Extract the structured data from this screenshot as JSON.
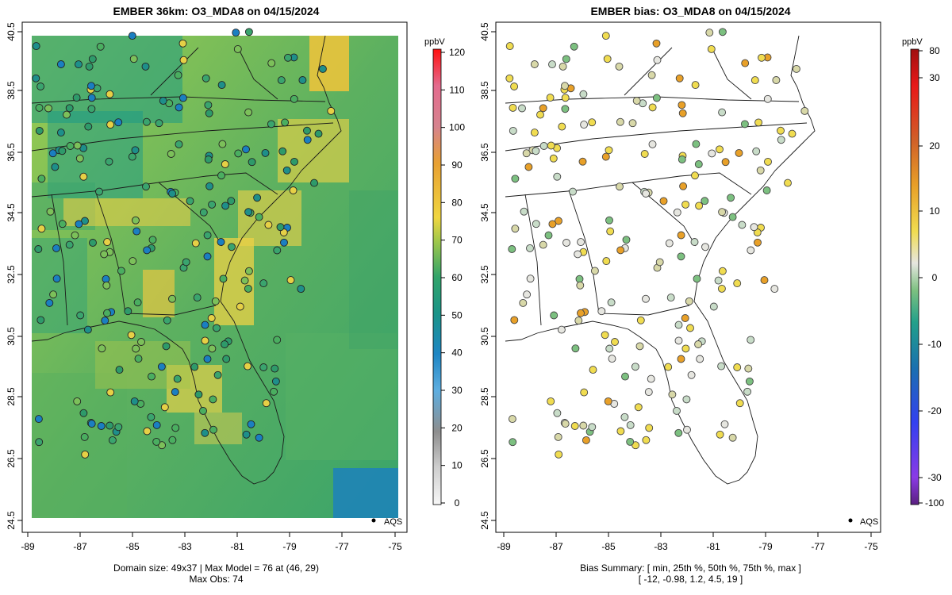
{
  "left_panel": {
    "title": "EMBER 36km: O3_MDA8 on 04/15/2024",
    "legend_unit": "ppbV",
    "legend_ticks": [
      "0",
      "10",
      "20",
      "30",
      "40",
      "50",
      "60",
      "70",
      "80",
      "90",
      "100",
      "110",
      "120"
    ],
    "marker_legend": "AQS",
    "caption_line1": "Domain size: 49x37 | Max Model = 76 at (46, 29)",
    "caption_line2": "Max Obs: 74"
  },
  "right_panel": {
    "title": "EMBER bias: O3_MDA8 on 04/15/2024",
    "legend_unit": "ppbV",
    "legend_ticks": [
      "80",
      "30",
      "20",
      "10",
      "0",
      "-10",
      "-20",
      "-30",
      "-100"
    ],
    "marker_legend": "AQS",
    "caption_line1": "Bias Summary: [ min, 25th %, 50th %, 75th %, max ]",
    "caption_line2": "[ -12,   -0.98,   1.2,   4.5,   19 ]"
  },
  "map_axes": {
    "x_ticks": [
      "-89",
      "-87",
      "-85",
      "-83",
      "-81",
      "-79",
      "-77",
      "-75"
    ],
    "y_ticks": [
      "24.5",
      "26.5",
      "28.5",
      "30.5",
      "32.5",
      "34.5",
      "36.5",
      "38.5",
      "40.5"
    ]
  },
  "colors": {
    "ozone_scale": [
      "#f2f2f2",
      "#bdbdbd",
      "#8c8c8c",
      "#5aa8dc",
      "#1a7fc1",
      "#1b8f8c",
      "#32a06a",
      "#66b85a",
      "#a8c84a",
      "#f0d040",
      "#e8a030",
      "#d85a7a",
      "#e8283a",
      "#ff0000"
    ],
    "bias_scale": [
      "#5a2080",
      "#8a2be2",
      "#2233ee",
      "#1a6ab0",
      "#2a9a8a",
      "#4aae6a",
      "#c8dcc8",
      "#e8e8c8",
      "#f0d040",
      "#e09020",
      "#c05030",
      "#e02020",
      "#a01818"
    ]
  },
  "chart_data": {
    "type": "map",
    "description_fields": {
      "x_axis_range": [
        -89.1,
        -74.8
      ],
      "y_axis_range": [
        24.4,
        40.7
      ],
      "left_colorbar_range": [
        0,
        120
      ],
      "right_colorbar_labels_order": "top-to-bottom"
    },
    "domain_size": "49x37",
    "max_model": 76,
    "max_model_location": [
      46,
      29
    ],
    "max_obs": 74,
    "bias_summary": {
      "min": -12,
      "p25": -0.98,
      "p50": 1.2,
      "p75": 4.5,
      "max": 19
    }
  }
}
